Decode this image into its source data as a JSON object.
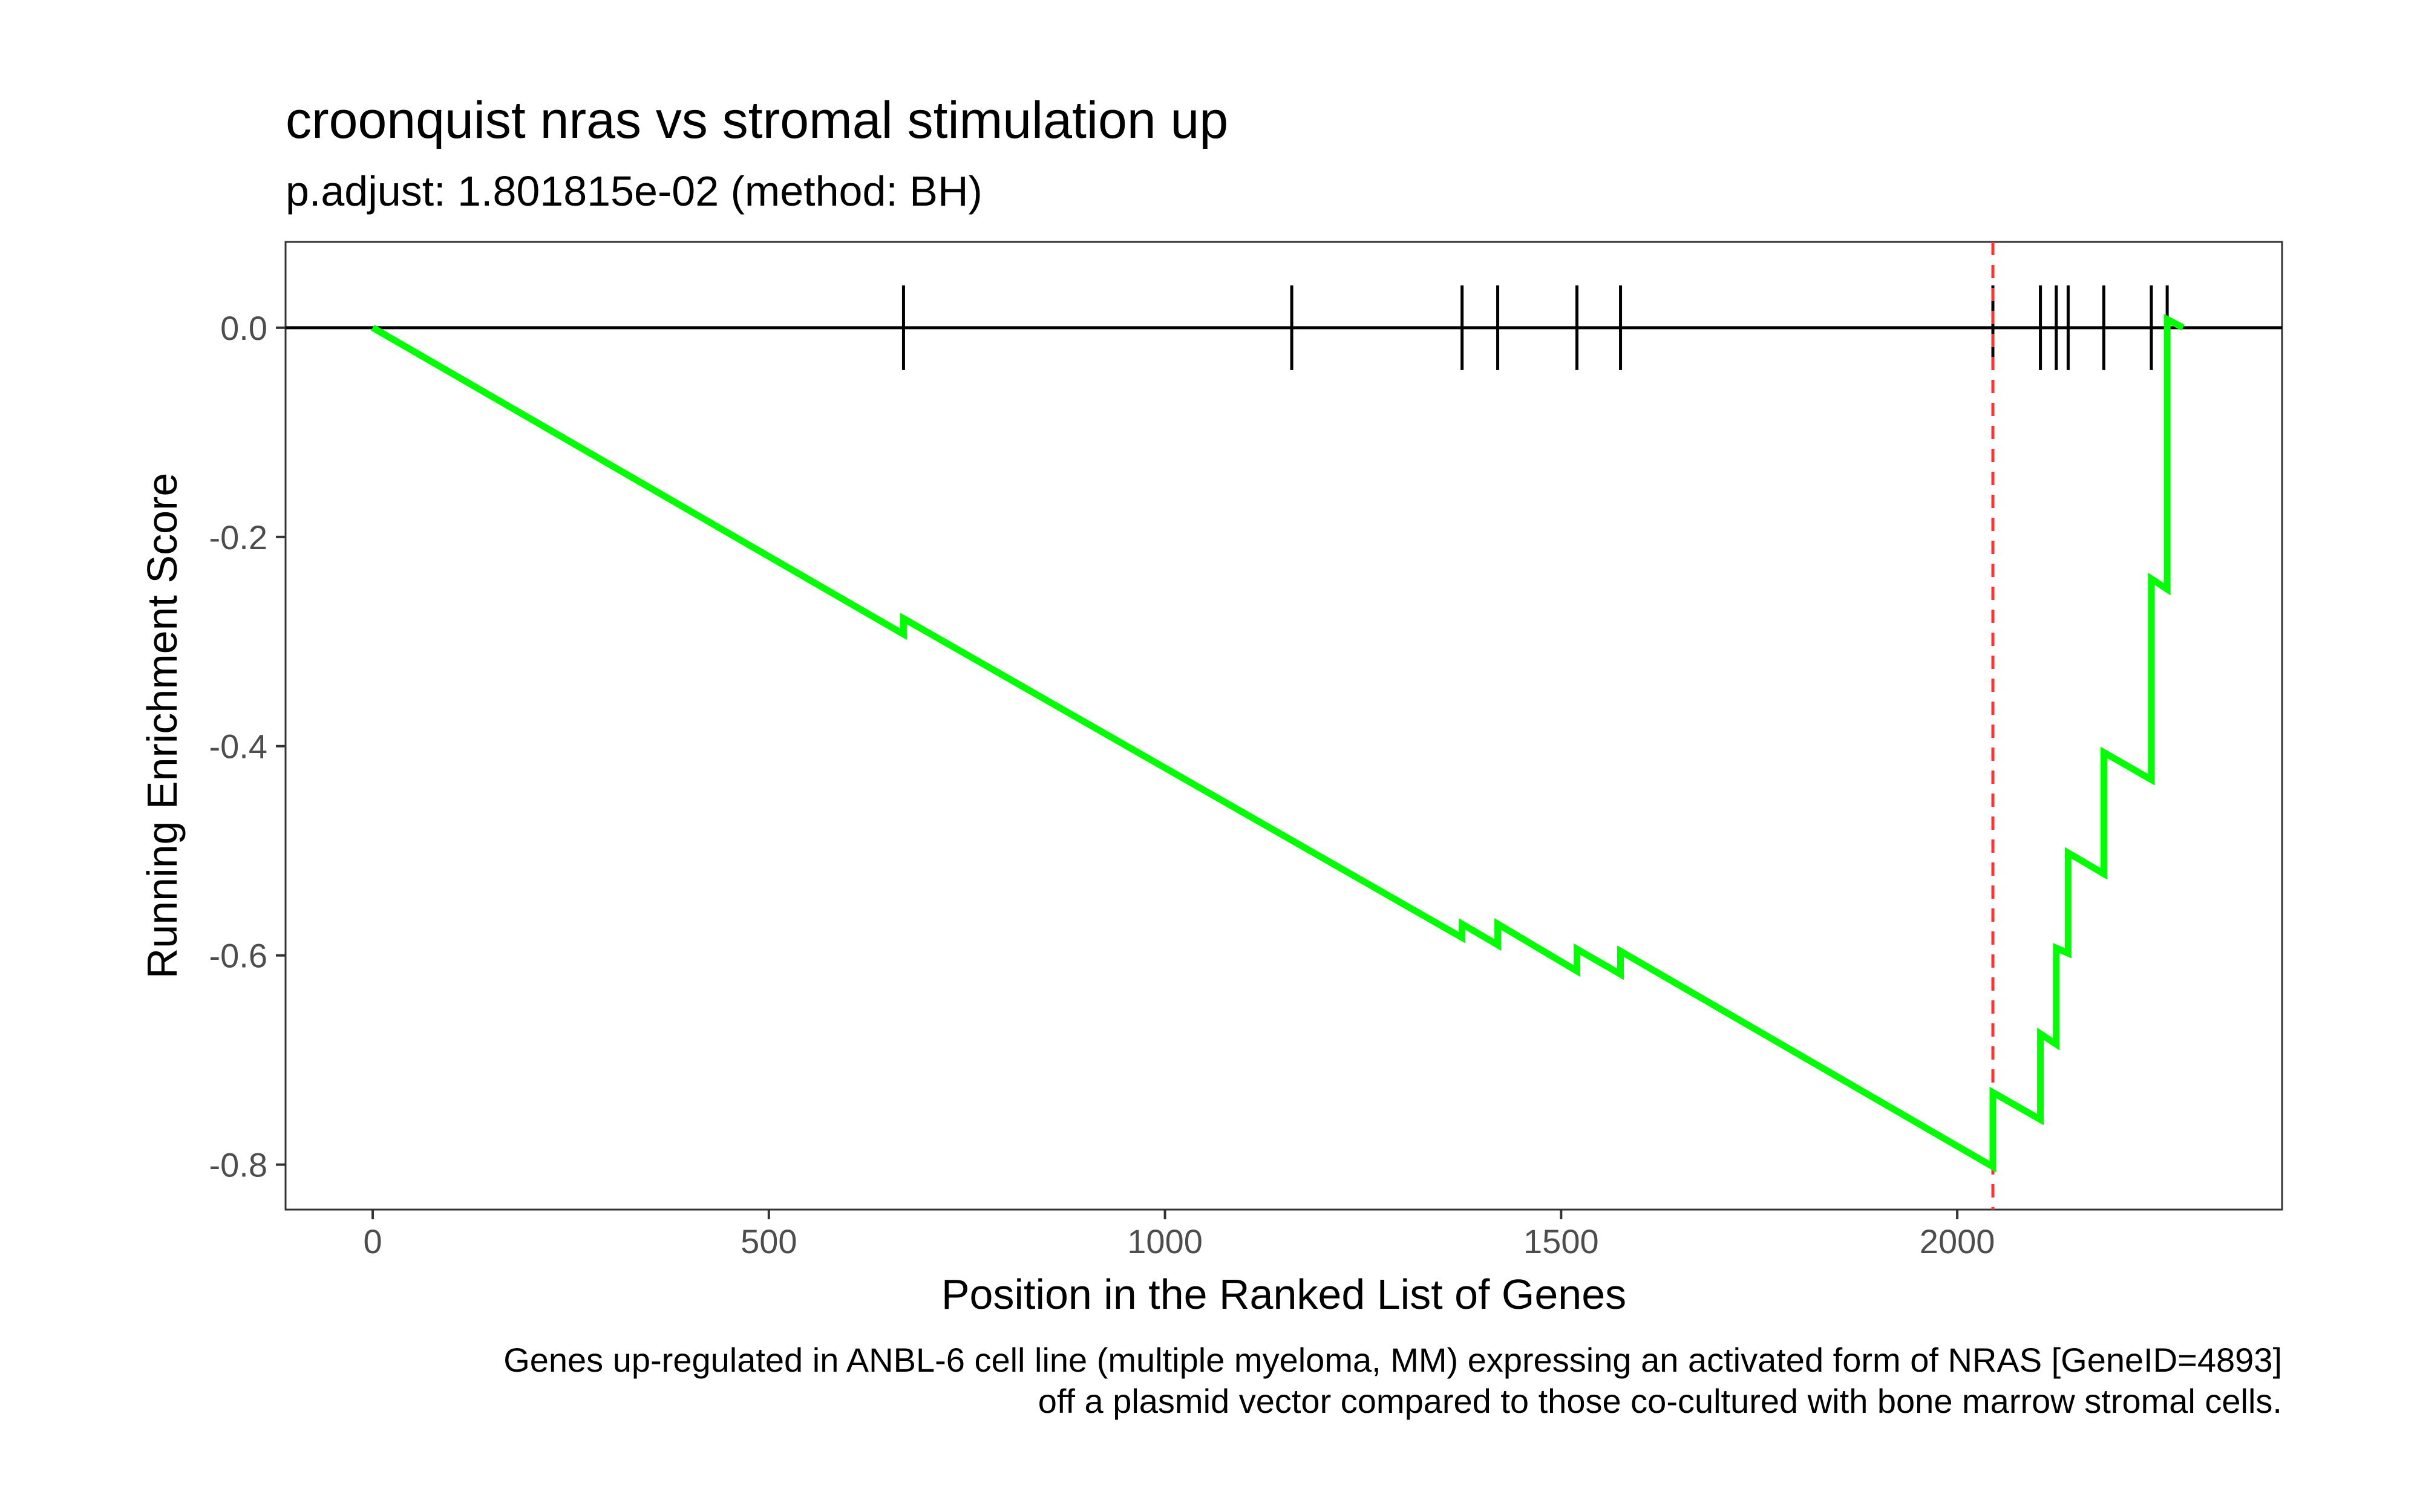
{
  "chart_data": {
    "type": "line",
    "title": "croonquist nras vs stromal stimulation up",
    "subtitle": "p.adjust: 1.801815e-02 (method: BH)",
    "xlabel": "Position in the Ranked List of Genes",
    "ylabel": "Running Enrichment Score",
    "caption": [
      "Genes up-regulated in ANBL-6 cell line (multiple myeloma, MM) expressing an activated form of NRAS [GeneID=4893]",
      "off a plasmid vector compared to those co-cultured with bone marrow stromal cells."
    ],
    "xlim": [
      -110,
      2410
    ],
    "ylim": [
      -0.843,
      0.082
    ],
    "xticks": [
      0,
      500,
      1000,
      1500,
      2000
    ],
    "xtick_labels": [
      "0",
      "500",
      "1000",
      "1500",
      "2000"
    ],
    "yticks": [
      0.0,
      -0.2,
      -0.4,
      -0.6,
      -0.8
    ],
    "ytick_labels": [
      "0.0",
      "-0.2",
      "-0.4",
      "-0.6",
      "-0.8"
    ],
    "grid": false,
    "colors": {
      "curve": "#00ff00",
      "peak_line": "#ff3333",
      "ticks": "#000000",
      "zero_line": "#000000",
      "panel_border": "#333333"
    },
    "series": [
      {
        "values_x": [
          0,
          670,
          670,
          1160,
          1375,
          1375,
          1420,
          1420,
          1520,
          1520,
          1575,
          1575,
          2045,
          2045,
          2105,
          2105,
          2125,
          2125,
          2140,
          2140,
          2185,
          2185,
          2245,
          2245,
          2265,
          2265,
          2285
        ],
        "values_y": [
          0.0,
          -0.293,
          -0.278,
          -0.49,
          -0.583,
          -0.57,
          -0.59,
          -0.57,
          -0.615,
          -0.594,
          -0.618,
          -0.596,
          -0.802,
          -0.731,
          -0.757,
          -0.675,
          -0.685,
          -0.593,
          -0.598,
          -0.502,
          -0.522,
          -0.406,
          -0.432,
          -0.24,
          -0.25,
          0.008,
          0.0
        ]
      }
    ],
    "gene_hits": [
      670,
      1160,
      1375,
      1420,
      1520,
      1575,
      2045,
      2105,
      2125,
      2140,
      2185,
      2245,
      2265
    ],
    "peak_position": 2045,
    "peak_score": -0.802
  }
}
